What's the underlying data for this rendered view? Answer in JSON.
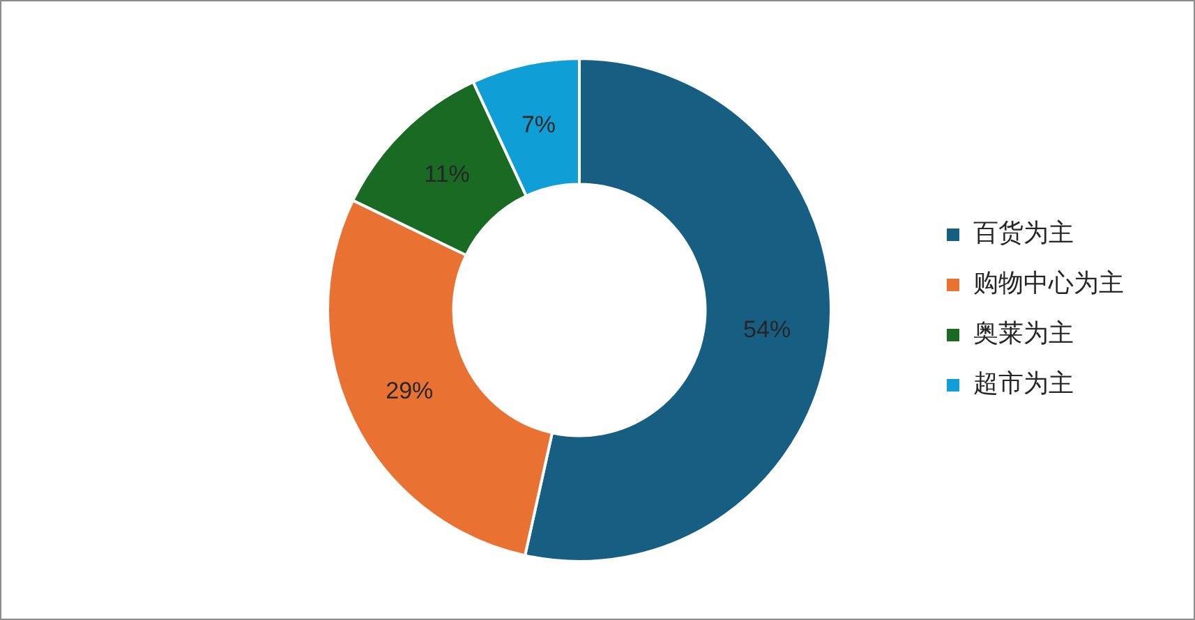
{
  "chart_data": {
    "type": "donut",
    "categories": [
      "百货为主",
      "购物中心为主",
      "奥莱为主",
      "超市为主"
    ],
    "values": [
      54,
      29,
      11,
      7
    ],
    "colors": [
      "#175f82",
      "#e97132",
      "#196b24",
      "#0f9ed5"
    ],
    "value_labels": [
      "54%",
      "29%",
      "11%",
      "7%"
    ],
    "legend": "right"
  }
}
